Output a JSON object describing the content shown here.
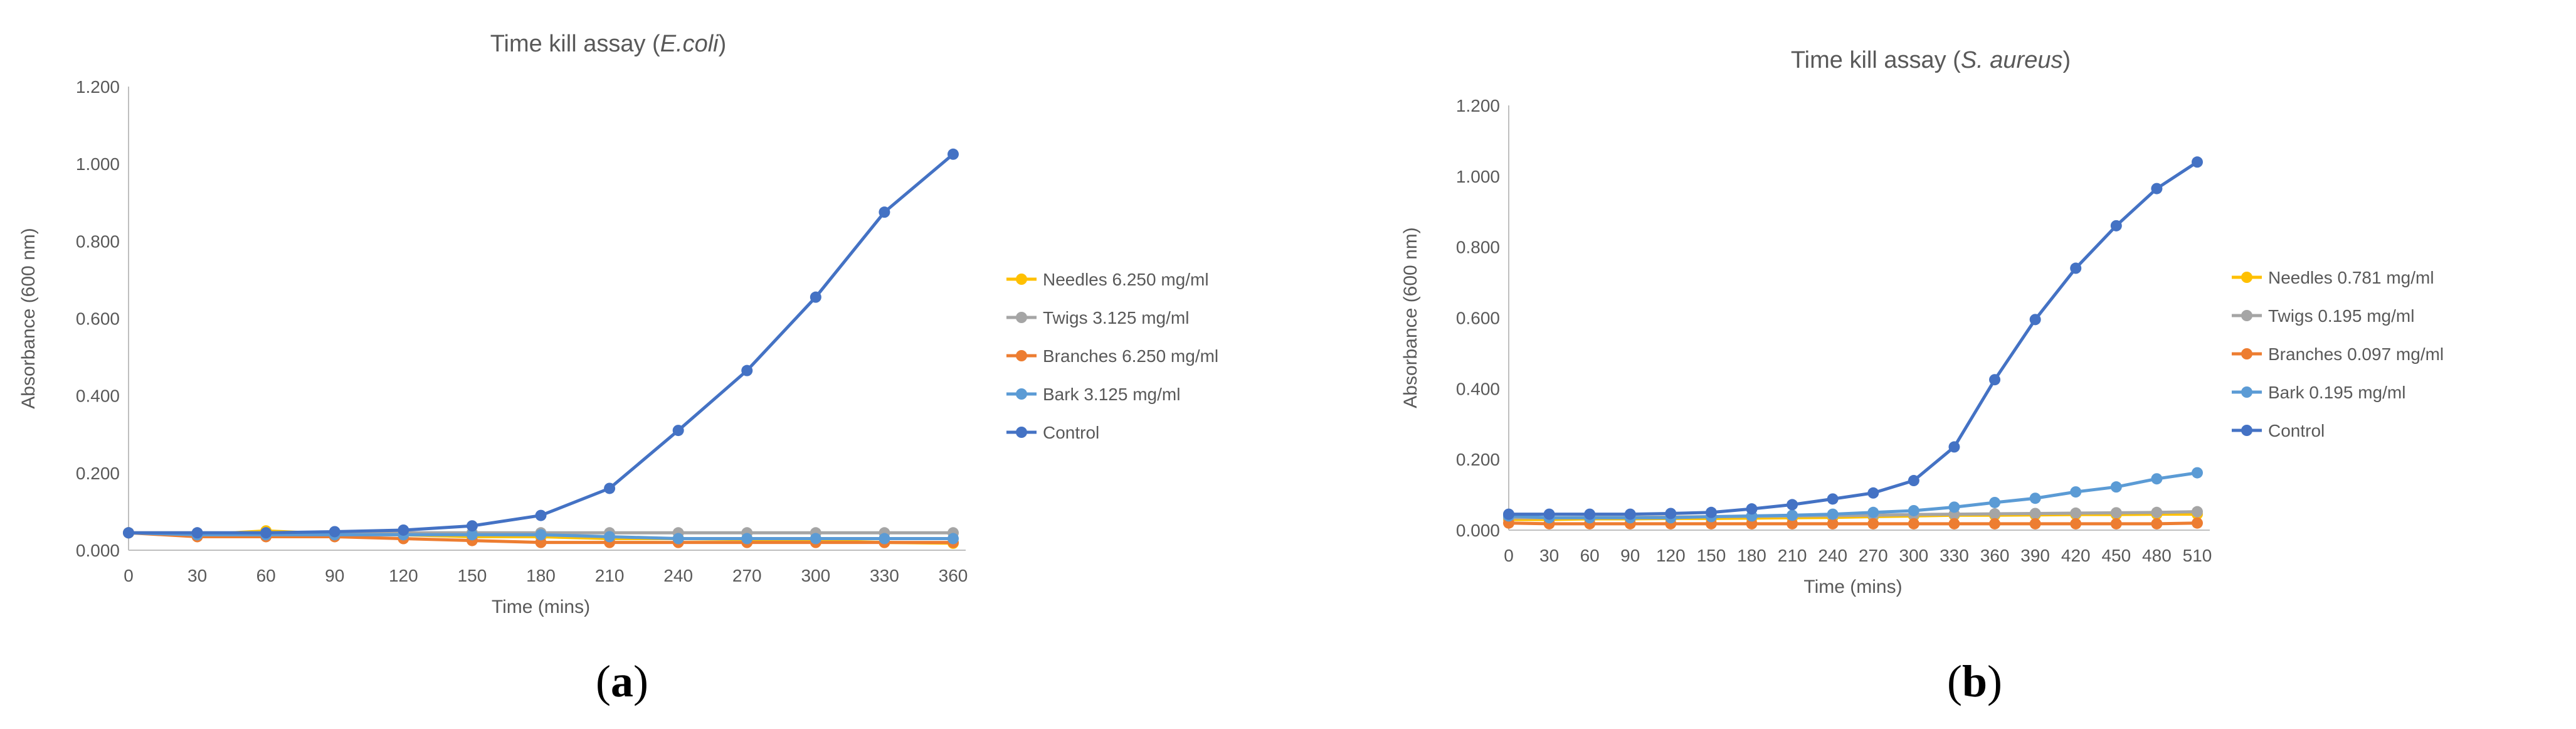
{
  "panels": {
    "a": {
      "label_open": "(",
      "label_letter": "a",
      "label_close": ")"
    },
    "b": {
      "label_open": "(",
      "label_letter": "b",
      "label_close": ")"
    }
  },
  "chart_data": [
    {
      "type": "line",
      "title_prefix": "Time kill assay (",
      "title_italic": "E.coli",
      "title_suffix": ")",
      "xlabel": "Time (mins)",
      "ylabel": "Absorbance (600 nm)",
      "x": [
        0,
        30,
        60,
        90,
        120,
        150,
        180,
        210,
        240,
        270,
        300,
        330,
        360
      ],
      "ylim": [
        0,
        1.2
      ],
      "yticks": [
        "0.000",
        "0.200",
        "0.400",
        "0.600",
        "0.800",
        "1.000",
        "1.200"
      ],
      "legend_position": "right",
      "series": [
        {
          "name": "Needles 6.250 mg/ml",
          "color": "#FFC000",
          "values": [
            0.045,
            0.04,
            0.05,
            0.042,
            0.04,
            0.035,
            0.035,
            0.03,
            0.03,
            0.028,
            0.025,
            0.02,
            0.018
          ]
        },
        {
          "name": "Twigs 3.125 mg/ml",
          "color": "#A5A5A5",
          "values": [
            0.045,
            0.045,
            0.045,
            0.045,
            0.045,
            0.045,
            0.045,
            0.045,
            0.045,
            0.045,
            0.045,
            0.045,
            0.045
          ]
        },
        {
          "name": "Branches 6.250 mg/ml",
          "color": "#ED7D31",
          "values": [
            0.045,
            0.035,
            0.035,
            0.035,
            0.03,
            0.025,
            0.02,
            0.02,
            0.02,
            0.02,
            0.02,
            0.02,
            0.02
          ]
        },
        {
          "name": "Bark 3.125 mg/ml",
          "color": "#5B9BD5",
          "values": [
            0.045,
            0.04,
            0.04,
            0.04,
            0.04,
            0.04,
            0.04,
            0.035,
            0.03,
            0.03,
            0.03,
            0.03,
            0.03
          ]
        },
        {
          "name": "Control",
          "color": "#4472C4",
          "values": [
            0.045,
            0.045,
            0.045,
            0.048,
            0.052,
            0.063,
            0.09,
            0.16,
            0.31,
            0.465,
            0.655,
            0.875,
            1.025
          ]
        }
      ]
    },
    {
      "type": "line",
      "title_prefix": "Time kill assay (",
      "title_italic": "S. aureus",
      "title_suffix": ")",
      "xlabel": "Time (mins)",
      "ylabel": "Absorbance (600 nm)",
      "x": [
        0,
        30,
        60,
        90,
        120,
        150,
        180,
        210,
        240,
        270,
        300,
        330,
        360,
        390,
        420,
        450,
        480,
        510
      ],
      "ylim": [
        0,
        1.2
      ],
      "yticks": [
        "0.000",
        "0.200",
        "0.400",
        "0.600",
        "0.800",
        "1.000",
        "1.200"
      ],
      "legend_position": "right",
      "series": [
        {
          "name": "Needles 0.781 mg/ml",
          "color": "#FFC000",
          "values": [
            0.03,
            0.03,
            0.032,
            0.032,
            0.033,
            0.033,
            0.034,
            0.035,
            0.036,
            0.038,
            0.04,
            0.042,
            0.042,
            0.043,
            0.044,
            0.044,
            0.045,
            0.045
          ]
        },
        {
          "name": "Twigs 0.195 mg/ml",
          "color": "#A5A5A5",
          "values": [
            0.035,
            0.035,
            0.036,
            0.036,
            0.037,
            0.038,
            0.039,
            0.04,
            0.041,
            0.042,
            0.044,
            0.045,
            0.046,
            0.047,
            0.048,
            0.049,
            0.05,
            0.052
          ]
        },
        {
          "name": "Branches 0.097  mg/ml",
          "color": "#ED7D31",
          "values": [
            0.02,
            0.018,
            0.018,
            0.018,
            0.018,
            0.018,
            0.018,
            0.018,
            0.018,
            0.018,
            0.018,
            0.018,
            0.018,
            0.018,
            0.018,
            0.018,
            0.018,
            0.02
          ]
        },
        {
          "name": "Bark 0.195 mg/ml",
          "color": "#5B9BD5",
          "values": [
            0.04,
            0.035,
            0.035,
            0.035,
            0.035,
            0.038,
            0.04,
            0.042,
            0.045,
            0.05,
            0.055,
            0.065,
            0.078,
            0.09,
            0.108,
            0.122,
            0.145,
            0.162
          ]
        },
        {
          "name": "Control",
          "color": "#4472C4",
          "values": [
            0.045,
            0.045,
            0.045,
            0.045,
            0.047,
            0.05,
            0.06,
            0.072,
            0.088,
            0.105,
            0.14,
            0.235,
            0.425,
            0.595,
            0.74,
            0.86,
            0.965,
            1.04
          ]
        }
      ]
    }
  ]
}
